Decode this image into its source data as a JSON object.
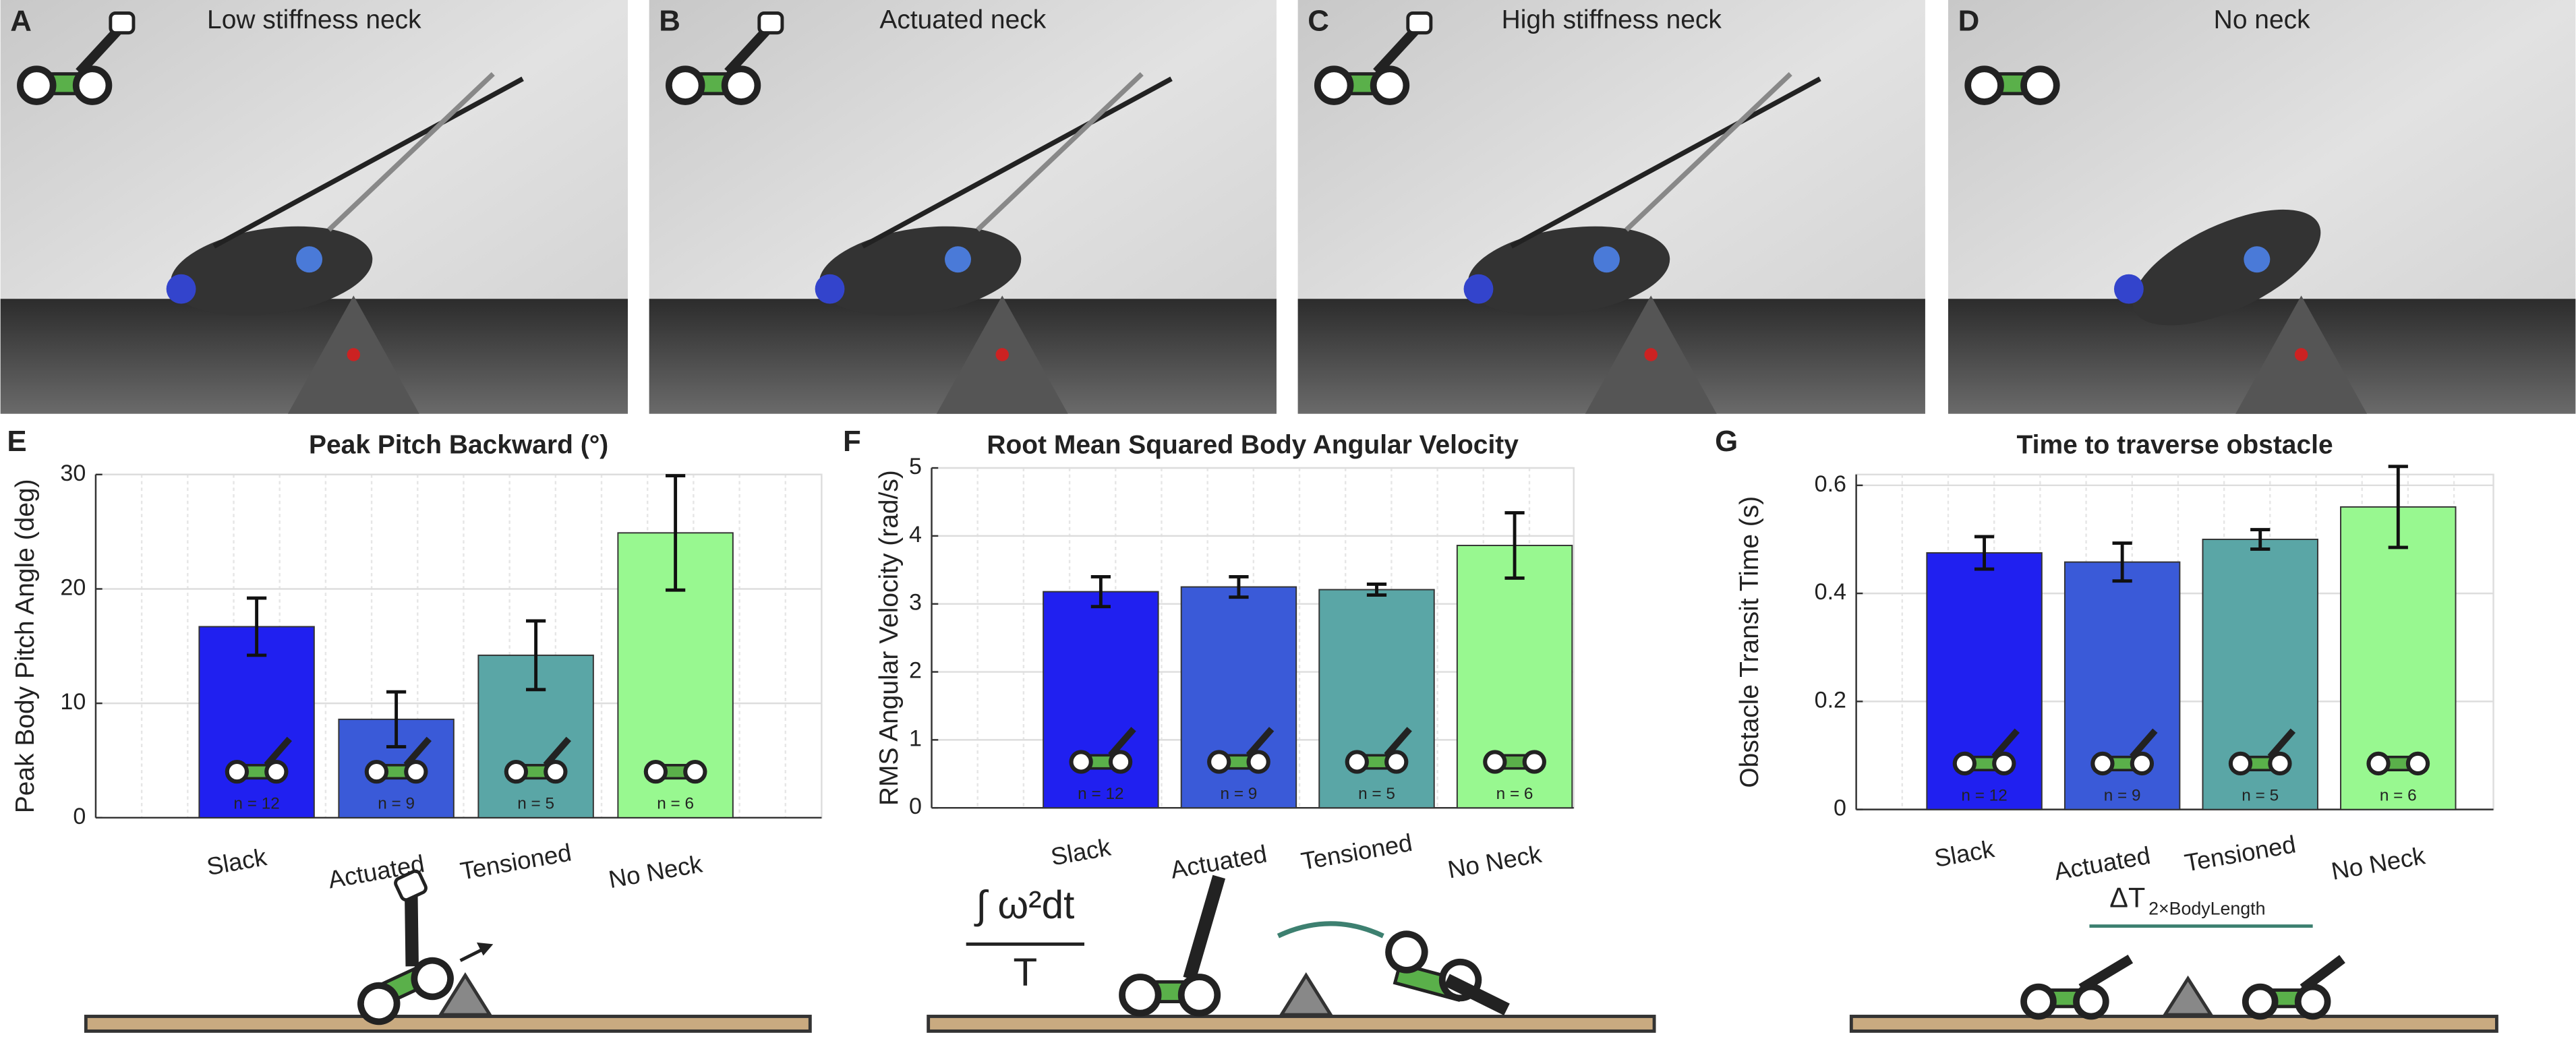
{
  "panels": [
    {
      "letter": "A",
      "title": "Low stiffness neck"
    },
    {
      "letter": "B",
      "title": "Actuated neck"
    },
    {
      "letter": "C",
      "title": "High stiffness neck"
    },
    {
      "letter": "D",
      "title": "No neck"
    }
  ],
  "chart_data": [
    {
      "type": "bar",
      "letter": "E",
      "title": "Peak Pitch Backward (°)",
      "ylabel": "Peak Body Pitch Angle  (deg)",
      "categories": [
        "Slack",
        "Actuated",
        "Tensioned",
        "No Neck"
      ],
      "values": [
        16.7,
        8.6,
        14.2,
        24.9
      ],
      "errors": [
        2.5,
        2.4,
        3.0,
        5.0
      ],
      "n_labels": [
        "n = 12",
        "n = 9",
        "n = 5",
        "n = 6"
      ],
      "colors": [
        "#2020f0",
        "#3a5ad8",
        "#5aa6a6",
        "#98f890"
      ],
      "ylim": [
        0,
        30
      ],
      "yticks": [
        0,
        10,
        20,
        30
      ],
      "grid": true
    },
    {
      "type": "bar",
      "letter": "F",
      "title": "Root Mean Squared Body Angular Velocity",
      "ylabel": "RMS Angular Velocity (rad/s)",
      "categories": [
        "Slack",
        "Actuated",
        "Tensioned",
        "No Neck"
      ],
      "values": [
        3.18,
        3.25,
        3.21,
        3.86
      ],
      "errors": [
        0.22,
        0.15,
        0.08,
        0.48
      ],
      "n_labels": [
        "n = 12",
        "n = 9",
        "n = 5",
        "n = 6"
      ],
      "colors": [
        "#2020f0",
        "#3a5ad8",
        "#5aa6a6",
        "#98f890"
      ],
      "ylim": [
        0,
        5
      ],
      "yticks": [
        0,
        1,
        2,
        3,
        4,
        5
      ],
      "grid": true
    },
    {
      "type": "bar",
      "letter": "G",
      "title": "Time to traverse obstacle",
      "ylabel": "Obstacle Transit Time (s)",
      "categories": [
        "Slack",
        "Actuated",
        "Tensioned",
        "No Neck"
      ],
      "values": [
        0.475,
        0.458,
        0.5,
        0.56
      ],
      "errors": [
        0.03,
        0.035,
        0.018,
        0.075
      ],
      "n_labels": [
        "n = 12",
        "n = 9",
        "n = 5",
        "n = 6"
      ],
      "colors": [
        "#2020f0",
        "#3a5ad8",
        "#5aa6a6",
        "#98f890"
      ],
      "ylim": [
        0,
        0.62
      ],
      "yticks": [
        0,
        0.2,
        0.4,
        0.6
      ],
      "grid": true
    }
  ],
  "diagrams": {
    "formula_numerator": "∫ ω²dt",
    "formula_denominator": "T",
    "delta_label": "ΔT",
    "delta_subscript": "2×BodyLength"
  }
}
